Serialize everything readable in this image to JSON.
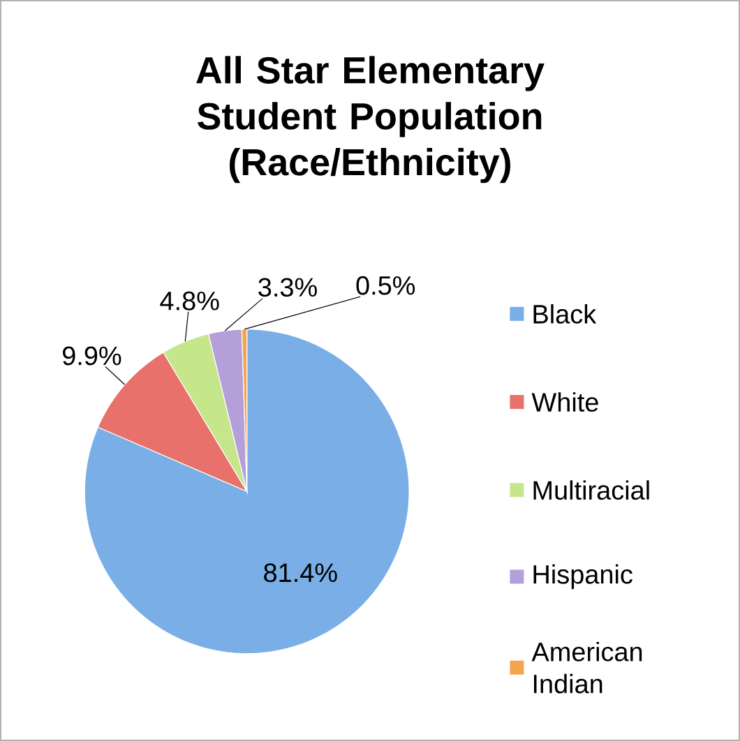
{
  "chart_data": {
    "type": "pie",
    "title": "All Star Elementary Student Population (Race/Ethnicity)",
    "categories": [
      "Black",
      "White",
      "Multiracial",
      "Hispanic",
      "American Indian"
    ],
    "values": [
      81.4,
      9.9,
      4.8,
      3.3,
      0.5
    ],
    "colors": [
      "#7aaee6",
      "#e8716b",
      "#c6e68c",
      "#b49fd8",
      "#f5a54f"
    ],
    "value_labels": [
      "81.4%",
      "9.9%",
      "4.8%",
      "3.3%",
      "0.5%"
    ],
    "legend": "right"
  }
}
